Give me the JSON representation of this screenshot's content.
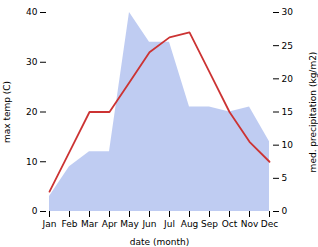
{
  "chart_data": {
    "type": "line",
    "categories": [
      "Jan",
      "Feb",
      "Mar",
      "Apr",
      "May",
      "Jun",
      "Jul",
      "Aug",
      "Sep",
      "Oct",
      "Nov",
      "Dec"
    ],
    "xlabel": "date (month)",
    "ylabel": "max temp (C)",
    "y2label": "med. precipitation (kg/m2)",
    "series": [
      {
        "type": "area",
        "color": "#aabbee",
        "values": [
          3,
          9,
          12,
          12,
          40,
          34,
          34,
          21,
          21,
          20,
          21,
          14
        ]
      },
      {
        "type": "line",
        "color": "#cc3333",
        "values": [
          4,
          12,
          20,
          20,
          26,
          32,
          35,
          36,
          28,
          20,
          14,
          10
        ]
      }
    ],
    "ylim": [
      0,
      40
    ],
    "yticks": [
      0,
      10,
      20,
      30,
      40
    ],
    "y2lim": [
      0,
      30
    ],
    "y2ticks": [
      0,
      5,
      10,
      15,
      20,
      25,
      30
    ],
    "grid": false
  }
}
